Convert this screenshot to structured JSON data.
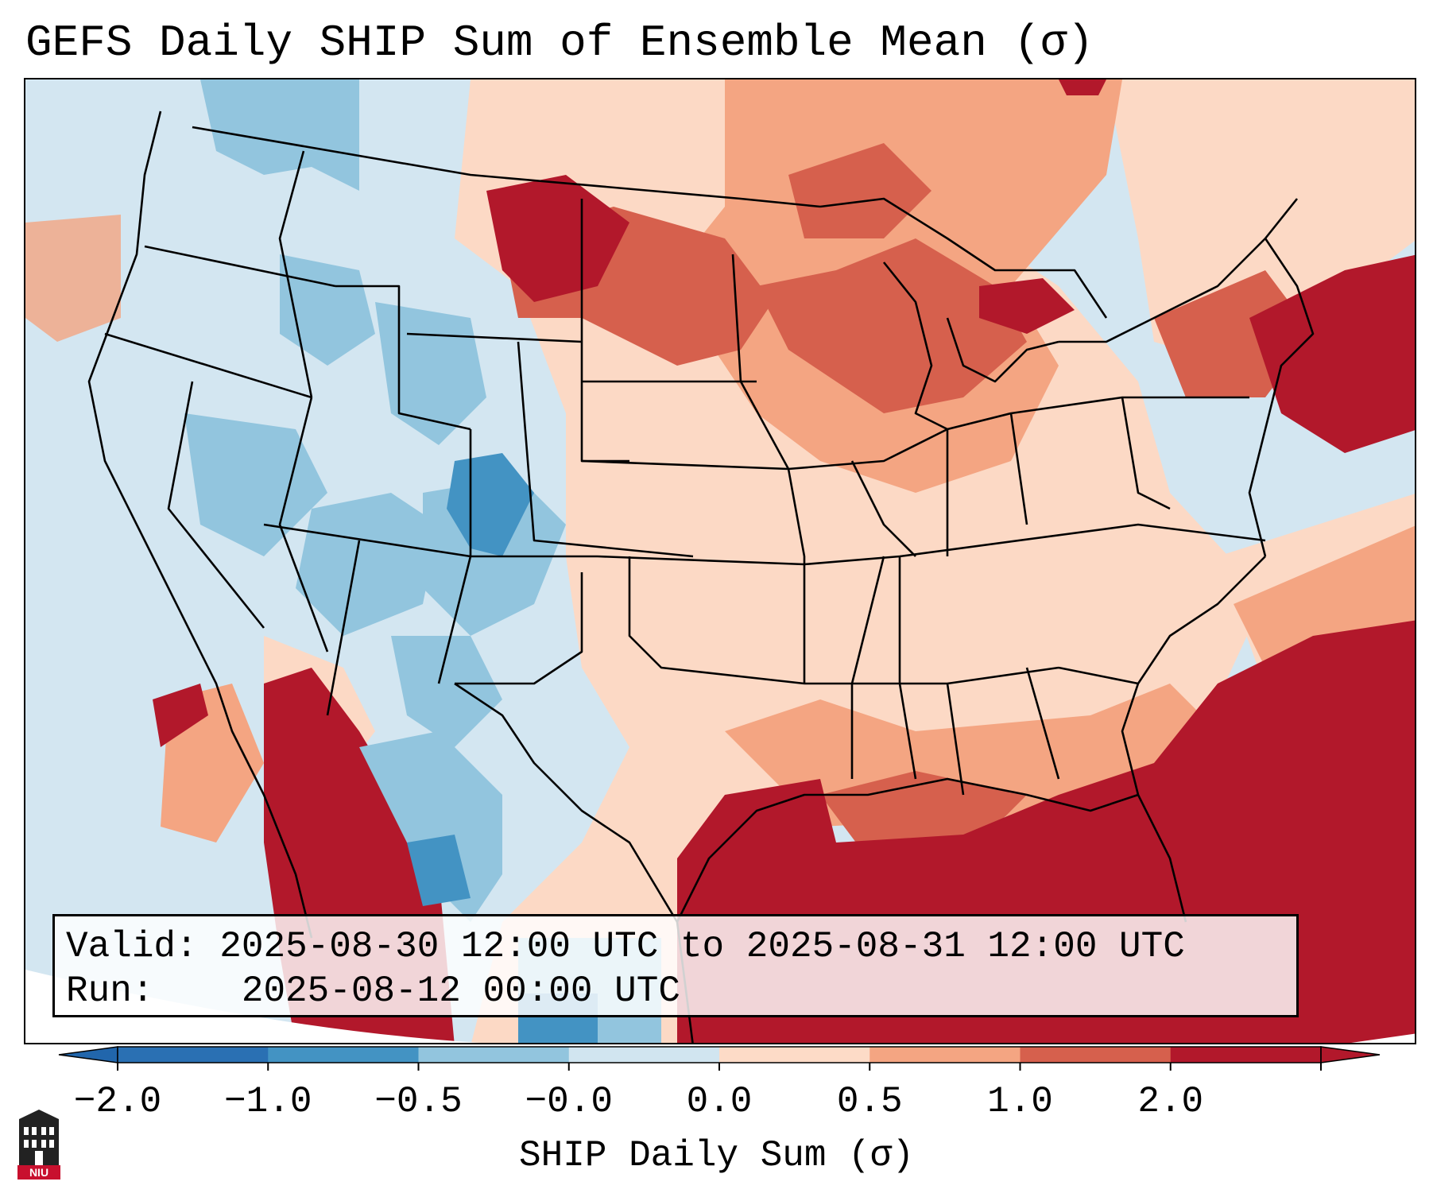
{
  "title": "GEFS Daily SHIP Sum of Ensemble Mean (σ)",
  "info": {
    "valid_label": "Valid:",
    "valid_value": "2025-08-30 12:00 UTC to 2025-08-31 12:00 UTC",
    "run_label": "Run:",
    "run_value": "2025-08-12 00:00 UTC"
  },
  "colorbar": {
    "label": "SHIP Daily Sum (σ)",
    "ticks": [
      "−2.0",
      "−1.0",
      "−0.5",
      "−0.0",
      "0.0",
      "0.5",
      "1.0",
      "2.0"
    ],
    "colors": [
      "#2a70b3",
      "#4393c3",
      "#92c5de",
      "#d1e5f0",
      "#fddbc7",
      "#f4a582",
      "#d6604d",
      "#b2182b"
    ],
    "under_color": "#2166ac",
    "over_color": "#b2182b",
    "extend": "both"
  },
  "logo": {
    "text": "NIU",
    "icon": "university-building-icon",
    "color": "#c8102e"
  },
  "map": {
    "projection": "lambert-conformal",
    "ocean_color": "#d3e6f1",
    "regions": [
      {
        "name": "pacific-northwest",
        "category": "near-zero-negative"
      },
      {
        "name": "northern-rockies",
        "category": "moderate-negative"
      },
      {
        "name": "four-corners",
        "category": "moderate-negative"
      },
      {
        "name": "northern-plains",
        "category": "strong-positive"
      },
      {
        "name": "upper-midwest",
        "category": "positive"
      },
      {
        "name": "gulf-of-mexico",
        "category": "strong-positive"
      },
      {
        "name": "western-atlantic",
        "category": "strong-positive"
      },
      {
        "name": "mexico-west-coast",
        "category": "strong-positive"
      },
      {
        "name": "southern-plains",
        "category": "near-zero-positive"
      }
    ]
  }
}
